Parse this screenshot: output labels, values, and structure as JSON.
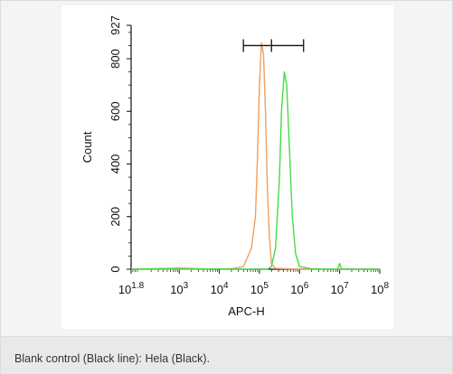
{
  "caption": "Blank control (Black line): Hela (Black).",
  "chart_data": {
    "type": "line",
    "xlabel": "APC-H",
    "ylabel": "Count",
    "x_scale": "log10",
    "xlim": [
      1.8,
      8
    ],
    "ylim": [
      0,
      927
    ],
    "x_ticks": [
      {
        "value": 1.8,
        "base": "10",
        "exp": "1.8"
      },
      {
        "value": 3,
        "base": "10",
        "exp": "3"
      },
      {
        "value": 4,
        "base": "10",
        "exp": "4"
      },
      {
        "value": 5,
        "base": "10",
        "exp": "5"
      },
      {
        "value": 6,
        "base": "10",
        "exp": "6"
      },
      {
        "value": 7,
        "base": "10",
        "exp": "7"
      },
      {
        "value": 8,
        "base": "10",
        "exp": "8"
      }
    ],
    "y_ticks": [
      {
        "value": 0,
        "label": "0"
      },
      {
        "value": 200,
        "label": "200"
      },
      {
        "value": 400,
        "label": "400"
      },
      {
        "value": 600,
        "label": "600"
      },
      {
        "value": 800,
        "label": "800"
      },
      {
        "value": 927,
        "label": "927"
      }
    ],
    "gate": {
      "x_start": 4.6,
      "x_mid": 5.3,
      "x_end": 6.1,
      "y": 850
    },
    "series": [
      {
        "color": "#f0a060",
        "points": [
          [
            1.8,
            0
          ],
          [
            3.5,
            0
          ],
          [
            4.3,
            2
          ],
          [
            4.6,
            10
          ],
          [
            4.8,
            80
          ],
          [
            4.9,
            200
          ],
          [
            4.95,
            420
          ],
          [
            5.0,
            700
          ],
          [
            5.05,
            860
          ],
          [
            5.1,
            820
          ],
          [
            5.15,
            600
          ],
          [
            5.2,
            300
          ],
          [
            5.25,
            120
          ],
          [
            5.3,
            20
          ],
          [
            5.4,
            3
          ],
          [
            6.0,
            0
          ],
          [
            8.0,
            0
          ]
        ]
      },
      {
        "color": "#44dd44",
        "points": [
          [
            1.8,
            0
          ],
          [
            3.0,
            4
          ],
          [
            3.5,
            2
          ],
          [
            4.5,
            0
          ],
          [
            5.2,
            0
          ],
          [
            5.3,
            10
          ],
          [
            5.4,
            80
          ],
          [
            5.5,
            350
          ],
          [
            5.55,
            600
          ],
          [
            5.62,
            750
          ],
          [
            5.68,
            700
          ],
          [
            5.75,
            450
          ],
          [
            5.82,
            200
          ],
          [
            5.9,
            60
          ],
          [
            6.0,
            10
          ],
          [
            6.3,
            2
          ],
          [
            6.8,
            0
          ],
          [
            6.95,
            0
          ],
          [
            7.0,
            22
          ],
          [
            7.05,
            0
          ],
          [
            8.0,
            0
          ]
        ]
      }
    ]
  }
}
